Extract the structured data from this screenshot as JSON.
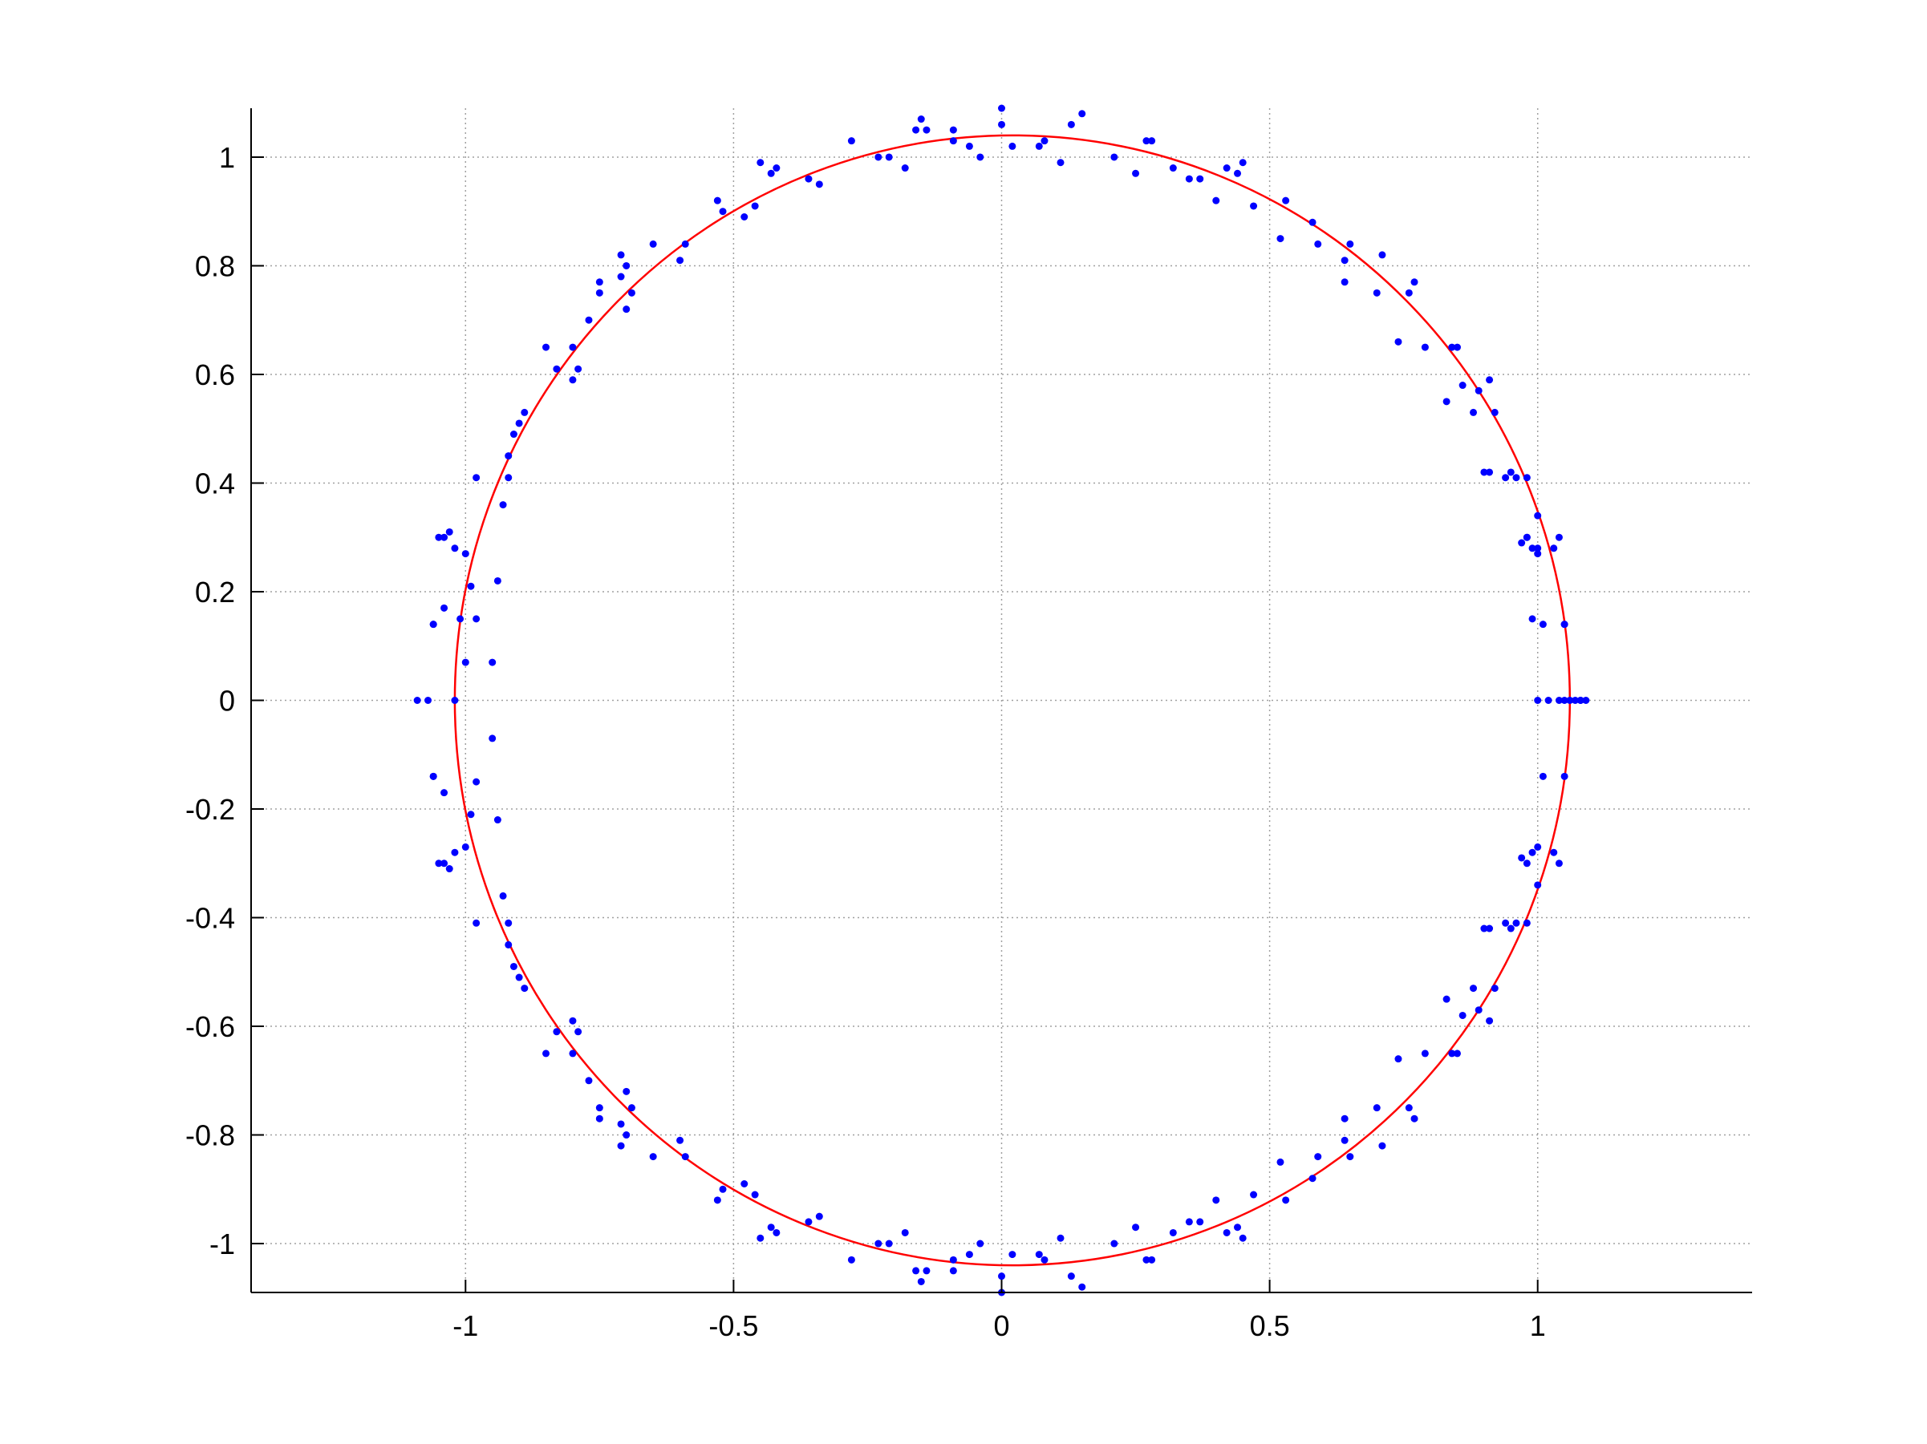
{
  "chart_data": {
    "type": "scatter",
    "title": "",
    "xlabel": "",
    "ylabel": "",
    "xlim": [
      -1.4,
      1.4
    ],
    "ylim": [
      -1.09,
      1.09
    ],
    "grid": true,
    "legend": "none",
    "x_ticks": [
      -1,
      -0.5,
      0,
      0.5,
      1
    ],
    "x_tick_labels": [
      "-1",
      "-0.5",
      "0",
      "0.5",
      "1"
    ],
    "y_ticks": [
      1,
      0.8,
      0.6,
      0.4,
      0.2,
      0,
      -0.2,
      -0.4,
      -0.6,
      -0.8,
      -1
    ],
    "y_tick_labels": [
      "1",
      "0.8",
      "0.6",
      "0.4",
      "0.2",
      "0",
      "-0.2",
      "-0.4",
      "-0.6",
      "-0.8",
      "-1"
    ],
    "colors": {
      "points": "#0000ff",
      "fit": "#ff0000",
      "grid": "#a0a0a0",
      "axes": "#000000"
    },
    "fitted_circle": {
      "center": [
        0.02,
        0.0
      ],
      "radius": 1.04
    },
    "series": [
      {
        "kind": "points",
        "x": [
          0.0,
          0.0,
          0.15,
          0.13,
          0.27,
          0.28,
          0.07,
          0.08,
          0.11,
          -0.04,
          0.02,
          0.21,
          -0.15,
          -0.16,
          -0.14,
          -0.09,
          -0.06,
          -0.28,
          -0.23,
          -0.21,
          -0.09,
          -0.18,
          0.25,
          0.32,
          0.35,
          0.37,
          0.4,
          0.42,
          0.44,
          0.45,
          0.47,
          0.53,
          0.52,
          0.58,
          0.59,
          0.64,
          0.65,
          0.64,
          0.7,
          0.71,
          0.74,
          0.76,
          0.77,
          -0.45,
          -0.43,
          -0.42,
          -0.46,
          -0.48,
          -0.53,
          -0.52,
          -0.36,
          -0.34,
          -0.59,
          -0.6,
          -0.65,
          -0.71,
          -0.7,
          -0.7,
          -0.75,
          -0.75,
          -0.77,
          -0.71,
          -0.69,
          0.79,
          0.84,
          0.85,
          0.83,
          0.86,
          0.88,
          0.89,
          0.9,
          0.91,
          0.92,
          0.96,
          0.97,
          1.0,
          -0.85,
          -0.83,
          -0.8,
          -0.8,
          -0.79,
          -0.89,
          -0.9,
          -0.91,
          -0.92,
          -0.92,
          -0.93,
          0.91,
          0.94,
          0.95,
          0.98,
          0.98,
          0.99,
          1.0,
          1.04,
          1.03,
          1.05,
          1.01,
          1.07,
          1.08,
          -1.06,
          -1.04,
          -1.03,
          -1.02,
          -1.04,
          -1.05,
          -1.06,
          -0.98,
          -1.0,
          -0.99,
          -0.95,
          -0.94,
          -0.98,
          1.06,
          1.05,
          1.08,
          1.09,
          0.99,
          1.0,
          1.02,
          1.04,
          0.98,
          1.0,
          1.05,
          -1.09,
          -1.07,
          -1.02,
          -1.01,
          -1.0,
          0.0,
          0.0,
          0.15,
          0.13,
          0.27,
          0.28,
          0.07,
          0.08,
          0.11,
          -0.04,
          0.02,
          0.21,
          -0.15,
          -0.16,
          -0.14,
          -0.09,
          -0.06,
          -0.28,
          -0.23,
          -0.21,
          -0.09,
          -0.18,
          0.25,
          0.32,
          0.35,
          0.37,
          0.4,
          0.42,
          0.44,
          0.45,
          0.47,
          0.53,
          0.52,
          0.58,
          0.59,
          0.64,
          0.65,
          0.64,
          0.7,
          0.71,
          0.74,
          0.76,
          0.77,
          -0.45,
          -0.43,
          -0.42,
          -0.46,
          -0.48,
          -0.53,
          -0.52,
          -0.36,
          -0.34,
          -0.59,
          -0.6,
          -0.65,
          -0.71,
          -0.7,
          -0.7,
          -0.75,
          -0.75,
          -0.77,
          -0.71,
          -0.69,
          0.79,
          0.84,
          0.85,
          0.83,
          0.86,
          0.88,
          0.89,
          0.9,
          0.91,
          0.92,
          0.96,
          0.97,
          1.0,
          -0.85,
          -0.83,
          -0.8,
          -0.8,
          -0.79,
          -0.89,
          -0.9,
          -0.91,
          -0.92,
          -0.92,
          -0.93,
          0.91,
          0.94,
          0.95,
          0.98,
          0.98,
          0.99,
          1.0,
          1.04,
          1.03,
          1.05,
          1.01,
          -1.06,
          -1.04,
          -1.03,
          -1.02,
          -1.04,
          -1.05,
          -1.06,
          -0.98,
          -1.0,
          -0.99,
          -0.95,
          -0.94,
          -0.98
        ],
        "y": [
          1.09,
          1.06,
          1.08,
          1.06,
          1.03,
          1.03,
          1.02,
          1.03,
          0.99,
          1.0,
          1.02,
          1.0,
          1.07,
          1.05,
          1.05,
          1.05,
          1.02,
          1.03,
          1.0,
          1.0,
          1.03,
          0.98,
          0.97,
          0.98,
          0.96,
          0.96,
          0.92,
          0.98,
          0.97,
          0.99,
          0.91,
          0.92,
          0.85,
          0.88,
          0.84,
          0.81,
          0.84,
          0.77,
          0.75,
          0.82,
          0.66,
          0.75,
          0.77,
          0.99,
          0.97,
          0.98,
          0.91,
          0.89,
          0.92,
          0.9,
          0.96,
          0.95,
          0.84,
          0.81,
          0.84,
          0.82,
          0.8,
          0.72,
          0.77,
          0.75,
          0.7,
          0.78,
          0.75,
          0.65,
          0.65,
          0.65,
          0.55,
          0.58,
          0.53,
          0.57,
          0.42,
          0.59,
          0.53,
          0.41,
          0.29,
          0.27,
          0.65,
          0.61,
          0.59,
          0.65,
          0.61,
          0.53,
          0.51,
          0.49,
          0.45,
          0.41,
          0.36,
          0.42,
          0.41,
          0.42,
          0.41,
          0.3,
          0.28,
          0.34,
          0.3,
          0.28,
          0.14,
          0.14,
          0.0,
          0.0,
          0.14,
          0.17,
          0.31,
          0.28,
          0.3,
          0.3,
          0.14,
          0.41,
          0.27,
          0.21,
          0.07,
          0.22,
          0.15,
          0.0,
          0.0,
          0.0,
          0.0,
          0.15,
          0.0,
          0.0,
          0.0,
          0.3,
          0.28,
          0.14,
          0.0,
          0.0,
          0.0,
          0.15,
          0.07,
          -1.09,
          -1.06,
          -1.08,
          -1.06,
          -1.03,
          -1.03,
          -1.02,
          -1.03,
          -0.99,
          -1.0,
          -1.02,
          -1.0,
          -1.07,
          -1.05,
          -1.05,
          -1.05,
          -1.02,
          -1.03,
          -1.0,
          -1.0,
          -1.03,
          -0.98,
          -0.97,
          -0.98,
          -0.96,
          -0.96,
          -0.92,
          -0.98,
          -0.97,
          -0.99,
          -0.91,
          -0.92,
          -0.85,
          -0.88,
          -0.84,
          -0.81,
          -0.84,
          -0.77,
          -0.75,
          -0.82,
          -0.66,
          -0.75,
          -0.77,
          -0.99,
          -0.97,
          -0.98,
          -0.91,
          -0.89,
          -0.92,
          -0.9,
          -0.96,
          -0.95,
          -0.84,
          -0.81,
          -0.84,
          -0.82,
          -0.8,
          -0.72,
          -0.77,
          -0.75,
          -0.7,
          -0.78,
          -0.75,
          -0.65,
          -0.65,
          -0.65,
          -0.55,
          -0.58,
          -0.53,
          -0.57,
          -0.42,
          -0.59,
          -0.53,
          -0.41,
          -0.29,
          -0.27,
          -0.65,
          -0.61,
          -0.59,
          -0.65,
          -0.61,
          -0.53,
          -0.51,
          -0.49,
          -0.45,
          -0.41,
          -0.36,
          -0.42,
          -0.41,
          -0.42,
          -0.41,
          -0.3,
          -0.28,
          -0.34,
          -0.3,
          -0.28,
          -0.14,
          -0.14,
          -0.14,
          -0.17,
          -0.31,
          -0.28,
          -0.3,
          -0.3,
          -0.14,
          -0.41,
          -0.27,
          -0.21,
          -0.07,
          -0.22,
          -0.15
        ]
      }
    ]
  }
}
